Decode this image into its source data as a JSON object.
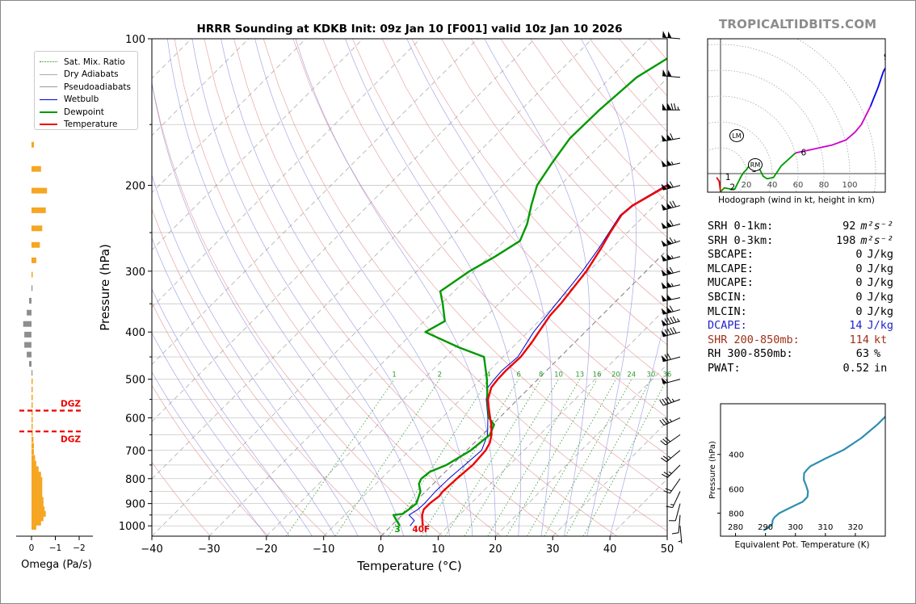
{
  "title": "HRRR Sounding at KDKB Init: 09z Jan 10 [F001] valid 10z Jan 10 2026",
  "brand": "TROPICALTIDBITS.COM",
  "legend": [
    {
      "label": "Sat. Mix. Ratio",
      "color": "#2e8b2e",
      "style": "dotted"
    },
    {
      "label": "Dry Adiabats",
      "color": "#aaaaaa",
      "style": "solid"
    },
    {
      "label": "Pseudoadiabats",
      "color": "#999999",
      "style": "solid"
    },
    {
      "label": "Wetbulb",
      "color": "#0000cc",
      "style": "solid"
    },
    {
      "label": "Dewpoint",
      "color": "#009900",
      "style": "thick"
    },
    {
      "label": "Temperature",
      "color": "#ee0000",
      "style": "thick"
    }
  ],
  "chart_data": [
    {
      "type": "line",
      "name": "skew-t",
      "xlabel": "Temperature (°C)",
      "ylabel": "Pressure (hPa)",
      "xlim": [
        -40,
        50
      ],
      "ylim": [
        1050,
        100
      ],
      "x_ticks": [
        "−40",
        "−30",
        "−20",
        "−10",
        "0",
        "10",
        "20",
        "30",
        "40",
        "50"
      ],
      "y_ticks": [
        "1000",
        "900",
        "800",
        "700",
        "600",
        "500",
        "400",
        "300",
        "200",
        "100"
      ],
      "mixing_ratio_labels": [
        "1",
        "2",
        "4",
        "6",
        "8",
        "10",
        "13",
        "16",
        "20",
        "24",
        "30",
        "36"
      ],
      "surface_label": "3",
      "surface_temp_label": "40F",
      "series": [
        {
          "name": "Temperature",
          "color": "#ee0000",
          "points": [
            [
              1000,
              5.5
            ],
            [
              975,
              4.5
            ],
            [
              950,
              3.5
            ],
            [
              925,
              2.8
            ],
            [
              900,
              2.8
            ],
            [
              870,
              3.2
            ],
            [
              850,
              3.0
            ],
            [
              800,
              3.2
            ],
            [
              750,
              3.6
            ],
            [
              700,
              3.3
            ],
            [
              675,
              2.7
            ],
            [
              650,
              1.6
            ],
            [
              620,
              -0.2
            ],
            [
              600,
              -1.6
            ],
            [
              575,
              -3.4
            ],
            [
              550,
              -5.2
            ],
            [
              520,
              -6.7
            ],
            [
              500,
              -7.0
            ],
            [
              480,
              -7.1
            ],
            [
              450,
              -6.9
            ],
            [
              420,
              -7.5
            ],
            [
              400,
              -8.1
            ],
            [
              370,
              -9.0
            ],
            [
              350,
              -9.2
            ],
            [
              320,
              -9.9
            ],
            [
              300,
              -10.4
            ],
            [
              270,
              -11.8
            ],
            [
              250,
              -13.0
            ],
            [
              230,
              -14.1
            ],
            [
              220,
              -13.8
            ],
            [
              200,
              -11.2
            ],
            [
              180,
              -8.5
            ],
            [
              160,
              -3.5
            ],
            [
              140,
              1.5
            ],
            [
              120,
              6.0
            ],
            [
              100,
              9.7
            ]
          ]
        },
        {
          "name": "Wetbulb",
          "color": "#0000cc",
          "points": [
            [
              1000,
              3.3
            ],
            [
              975,
              3.1
            ],
            [
              950,
              1.2
            ],
            [
              925,
              1.8
            ],
            [
              900,
              1.9
            ],
            [
              870,
              1.8
            ],
            [
              850,
              1.7
            ],
            [
              800,
              1.8
            ],
            [
              750,
              2.2
            ],
            [
              700,
              2.6
            ],
            [
              650,
              0.9
            ],
            [
              600,
              -2.0
            ],
            [
              550,
              -5.5
            ],
            [
              520,
              -7.3
            ],
            [
              500,
              -7.6
            ],
            [
              480,
              -7.8
            ],
            [
              450,
              -7.4
            ],
            [
              400,
              -9.0
            ],
            [
              350,
              -10.0
            ],
            [
              320,
              -10.6
            ],
            [
              300,
              -11.1
            ],
            [
              270,
              -12.2
            ],
            [
              250,
              -13.2
            ],
            [
              230,
              -14.3
            ],
            [
              220,
              -14.0
            ],
            [
              200,
              -11.5
            ],
            [
              180,
              -8.6
            ],
            [
              160,
              -3.7
            ],
            [
              140,
              1.2
            ],
            [
              120,
              5.4
            ],
            [
              100,
              9.0
            ]
          ]
        },
        {
          "name": "Dewpoint",
          "color": "#009900",
          "points": [
            [
              1000,
              1.5
            ],
            [
              990,
              0.9
            ],
            [
              975,
              0.0
            ],
            [
              950,
              -1.5
            ],
            [
              945,
              -0.1
            ],
            [
              925,
              0.2
            ],
            [
              900,
              0.5
            ],
            [
              850,
              -0.9
            ],
            [
              820,
              -2.5
            ],
            [
              800,
              -3.0
            ],
            [
              775,
              -2.7
            ],
            [
              750,
              -1.0
            ],
            [
              700,
              0.7
            ],
            [
              650,
              1.3
            ],
            [
              620,
              0.3
            ],
            [
              600,
              -1.8
            ],
            [
              560,
              -4.6
            ],
            [
              500,
              -8.9
            ],
            [
              450,
              -13.3
            ],
            [
              430,
              -19.4
            ],
            [
              400,
              -27.9
            ],
            [
              380,
              -26.4
            ],
            [
              350,
              -29.8
            ],
            [
              330,
              -32.4
            ],
            [
              300,
              -30.8
            ],
            [
              280,
              -28.9
            ],
            [
              260,
              -27.3
            ],
            [
              240,
              -29.0
            ],
            [
              220,
              -31.5
            ],
            [
              200,
              -34.0
            ],
            [
              180,
              -35.3
            ],
            [
              160,
              -36.5
            ],
            [
              140,
              -36.3
            ],
            [
              120,
              -35.5
            ],
            [
              110,
              -33.5
            ],
            [
              100,
              -31.0
            ]
          ]
        }
      ]
    },
    {
      "type": "bar",
      "name": "omega",
      "xlabel": "Omega (Pa/s)",
      "x_ticks": [
        "0",
        "−1",
        "−2"
      ],
      "dgz_label": "DGZ",
      "dgz_layer": [
        580,
        640
      ],
      "levels": [
        165,
        185,
        205,
        225,
        245,
        265,
        285,
        305,
        325,
        345,
        365,
        385,
        405,
        425,
        445,
        465,
        485,
        505,
        525,
        545,
        565,
        585,
        605,
        625,
        645,
        665,
        685,
        705,
        725,
        745,
        765,
        785,
        805,
        825,
        845,
        865,
        885,
        905,
        925,
        945,
        965,
        985,
        1005
      ],
      "omega": [
        -0.1,
        -0.4,
        -0.65,
        -0.6,
        -0.45,
        -0.35,
        -0.2,
        -0.05,
        0.0,
        0.1,
        0.2,
        0.35,
        0.3,
        0.3,
        0.2,
        0.1,
        0.0,
        -0.05,
        -0.05,
        -0.05,
        -0.05,
        -0.05,
        -0.05,
        -0.05,
        -0.05,
        -0.08,
        -0.1,
        -0.1,
        -0.15,
        -0.2,
        -0.3,
        -0.4,
        -0.45,
        -0.45,
        -0.45,
        -0.45,
        -0.5,
        -0.5,
        -0.55,
        -0.6,
        -0.5,
        -0.4,
        -0.2
      ]
    },
    {
      "type": "line",
      "name": "hodograph",
      "xlabel": "Hodograph (wind in kt, height in km)",
      "ring_labels": [
        "20",
        "40",
        "60",
        "80",
        "100"
      ],
      "point_labels": [
        "1",
        "2",
        "3",
        "6",
        "9"
      ],
      "storm_motion_labels": [
        "LM",
        "RM"
      ],
      "trace": [
        [
          -3,
          -3
        ],
        [
          -1,
          -6
        ],
        [
          0,
          -14
        ],
        [
          3,
          -11
        ],
        [
          8,
          -12
        ],
        [
          11,
          -12
        ],
        [
          14,
          -6
        ],
        [
          16,
          -2
        ],
        [
          18,
          1
        ],
        [
          20,
          3
        ],
        [
          22,
          6
        ],
        [
          26,
          4
        ],
        [
          30,
          4
        ],
        [
          33,
          -2
        ],
        [
          36,
          -4
        ],
        [
          41,
          -3
        ],
        [
          47,
          6
        ],
        [
          58,
          16
        ],
        [
          72,
          19
        ],
        [
          86,
          22
        ],
        [
          97,
          26
        ],
        [
          104,
          32
        ],
        [
          109,
          38
        ],
        [
          116,
          52
        ],
        [
          122,
          67
        ],
        [
          126,
          79
        ],
        [
          130,
          86
        ],
        [
          132,
          95
        ]
      ],
      "colors": {
        "low": "#ee0000",
        "mid": "#009900",
        "upper": "#cc00cc",
        "top": "#0000ee"
      }
    },
    {
      "type": "line",
      "name": "theta-e",
      "xlabel": "Equivalent Pot. Temperature (K)",
      "ylabel": "Pressure (hPa)",
      "xlim": [
        275,
        330
      ],
      "ylim": [
        1050,
        220
      ],
      "x_ticks": [
        "280",
        "290",
        "300",
        "310",
        "320"
      ],
      "y_ticks": [
        "400",
        "600",
        "800"
      ],
      "color": "#2e8fb0",
      "points": [
        [
          980,
          289.3
        ],
        [
          960,
          290.5
        ],
        [
          940,
          291.3
        ],
        [
          920,
          292.1
        ],
        [
          900,
          292.3
        ],
        [
          870,
          292.4
        ],
        [
          840,
          293.0
        ],
        [
          800,
          294.6
        ],
        [
          760,
          297.5
        ],
        [
          720,
          300.7
        ],
        [
          700,
          302.4
        ],
        [
          660,
          304.0
        ],
        [
          620,
          304.2
        ],
        [
          580,
          303.6
        ],
        [
          540,
          302.8
        ],
        [
          500,
          302.9
        ],
        [
          480,
          303.8
        ],
        [
          460,
          305.0
        ],
        [
          420,
          310.0
        ],
        [
          380,
          316.0
        ],
        [
          330,
          322.0
        ],
        [
          280,
          327.5
        ],
        [
          230,
          333.0
        ]
      ]
    }
  ],
  "stats": [
    {
      "label": "SRH 0-1km:",
      "value": "92",
      "unit": "m²s⁻²",
      "color": "#000000"
    },
    {
      "label": "SRH 0-3km:",
      "value": "198",
      "unit": "m²s⁻²",
      "color": "#000000"
    },
    {
      "label": "SBCAPE:",
      "value": "0",
      "unit": "J/kg",
      "color": "#000000"
    },
    {
      "label": "MLCAPE:",
      "value": "0",
      "unit": "J/kg",
      "color": "#000000"
    },
    {
      "label": "MUCAPE:",
      "value": "0",
      "unit": "J/kg",
      "color": "#000000"
    },
    {
      "label": "SBCIN:",
      "value": "0",
      "unit": "J/kg",
      "color": "#000000"
    },
    {
      "label": "MLCIN:",
      "value": "0",
      "unit": "J/kg",
      "color": "#000000"
    },
    {
      "label": "DCAPE:",
      "value": "14",
      "unit": "J/kg",
      "color": "#2222cc"
    },
    {
      "label": "SHR 200-850mb:",
      "value": "114",
      "unit": "kt",
      "color": "#a03018"
    },
    {
      "label": "RH 300-850mb:",
      "value": "63",
      "unit": "%",
      "color": "#000000"
    },
    {
      "label": "PWAT:",
      "value": "0.52",
      "unit": "in",
      "color": "#000000"
    }
  ],
  "wind_barbs": [
    {
      "p": 100,
      "spd": 100,
      "dir": 275
    },
    {
      "p": 120,
      "spd": 100,
      "dir": 275
    },
    {
      "p": 140,
      "spd": 125,
      "dir": 270
    },
    {
      "p": 160,
      "spd": 110,
      "dir": 260
    },
    {
      "p": 180,
      "spd": 105,
      "dir": 258
    },
    {
      "p": 200,
      "spd": 110,
      "dir": 255
    },
    {
      "p": 220,
      "spd": 120,
      "dir": 255
    },
    {
      "p": 240,
      "spd": 110,
      "dir": 255
    },
    {
      "p": 260,
      "spd": 115,
      "dir": 252
    },
    {
      "p": 280,
      "spd": 105,
      "dir": 255
    },
    {
      "p": 300,
      "spd": 110,
      "dir": 255
    },
    {
      "p": 320,
      "spd": 105,
      "dir": 258
    },
    {
      "p": 340,
      "spd": 100,
      "dir": 258
    },
    {
      "p": 360,
      "spd": 110,
      "dir": 255
    },
    {
      "p": 380,
      "spd": 95,
      "dir": 255
    },
    {
      "p": 400,
      "spd": 90,
      "dir": 255
    },
    {
      "p": 450,
      "spd": 70,
      "dir": 255
    },
    {
      "p": 500,
      "spd": 55,
      "dir": 255
    },
    {
      "p": 550,
      "spd": 45,
      "dir": 250
    },
    {
      "p": 600,
      "spd": 35,
      "dir": 245
    },
    {
      "p": 650,
      "spd": 30,
      "dir": 235
    },
    {
      "p": 700,
      "spd": 25,
      "dir": 230
    },
    {
      "p": 750,
      "spd": 25,
      "dir": 225
    },
    {
      "p": 800,
      "spd": 20,
      "dir": 215
    },
    {
      "p": 850,
      "spd": 15,
      "dir": 205
    },
    {
      "p": 900,
      "spd": 10,
      "dir": 195
    },
    {
      "p": 950,
      "spd": 10,
      "dir": 185
    },
    {
      "p": 1000,
      "spd": 5,
      "dir": 175
    }
  ]
}
